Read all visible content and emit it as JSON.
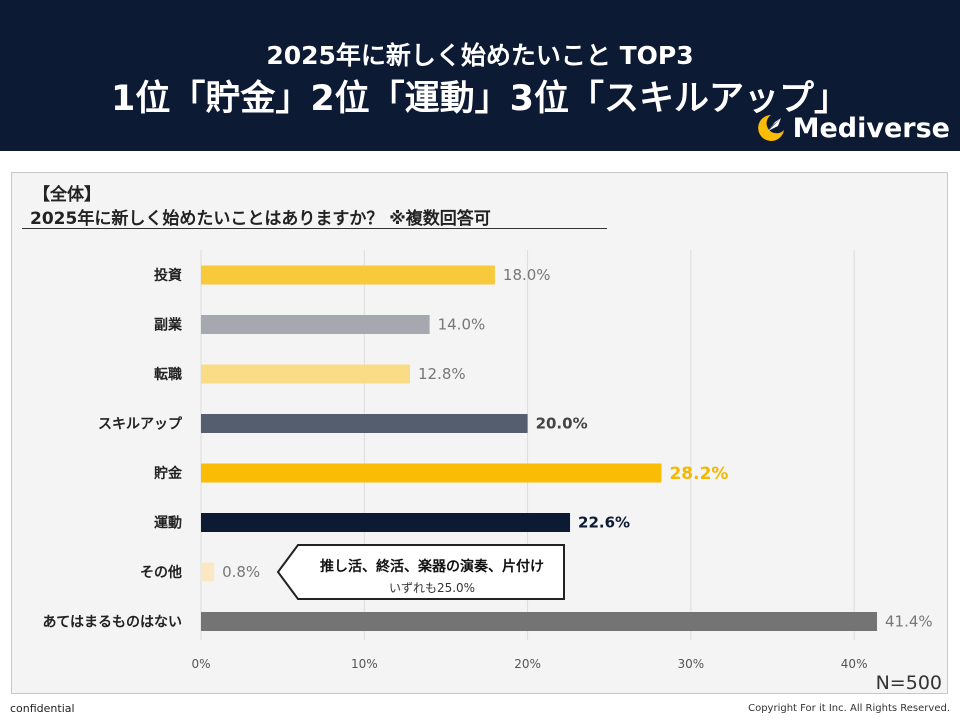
{
  "header": {
    "subtitle": "2025年に新しく始めたいこと TOP3",
    "headline": "1位「貯金」2位「運動」3位「スキルアップ」",
    "brand": "Mediverse",
    "bg_color": "#0d1a33",
    "logo_icon": "crescent-rocket-icon"
  },
  "panel": {
    "category": "【全体】",
    "question": "2025年に新しく始めたいことはありますか？  ※複数回答可"
  },
  "chart_data": {
    "type": "bar",
    "orientation": "horizontal",
    "categories": [
      "投資",
      "副業",
      "転職",
      "スキルアップ",
      "貯金",
      "運動",
      "その他",
      "あてはまるものはない"
    ],
    "values": [
      18.0,
      14.0,
      12.8,
      20.0,
      28.2,
      22.6,
      0.8,
      41.4
    ],
    "value_labels": [
      "18.0%",
      "14.0%",
      "12.8%",
      "20.0%",
      "28.2%",
      "22.6%",
      "0.8%",
      "41.4%"
    ],
    "colors": [
      "#f9c93c",
      "#a5a8ae",
      "#fadb86",
      "#545e6e",
      "#fbbc05",
      "#0d1a33",
      "#fbe8c2",
      "#747474"
    ],
    "label_colors": [
      "#777777",
      "#777777",
      "#777777",
      "#444444",
      "#f5b800",
      "#0d1a33",
      "#777777",
      "#777777"
    ],
    "label_bold": [
      false,
      false,
      false,
      true,
      true,
      true,
      false,
      false
    ],
    "xlim": [
      0,
      41.4
    ],
    "ticks": [
      0,
      10,
      20,
      30,
      40
    ],
    "tick_labels": [
      "0%",
      "10%",
      "20%",
      "30%",
      "40%"
    ],
    "grid": true
  },
  "callout": {
    "main": "推し活、終活、楽器の演奏、片付け",
    "sub": "いずれも25.0%"
  },
  "sample_size": "N=500",
  "footer": {
    "confidential": "confidential",
    "copyright": "Copyright For it Inc. All Rights Reserved."
  }
}
